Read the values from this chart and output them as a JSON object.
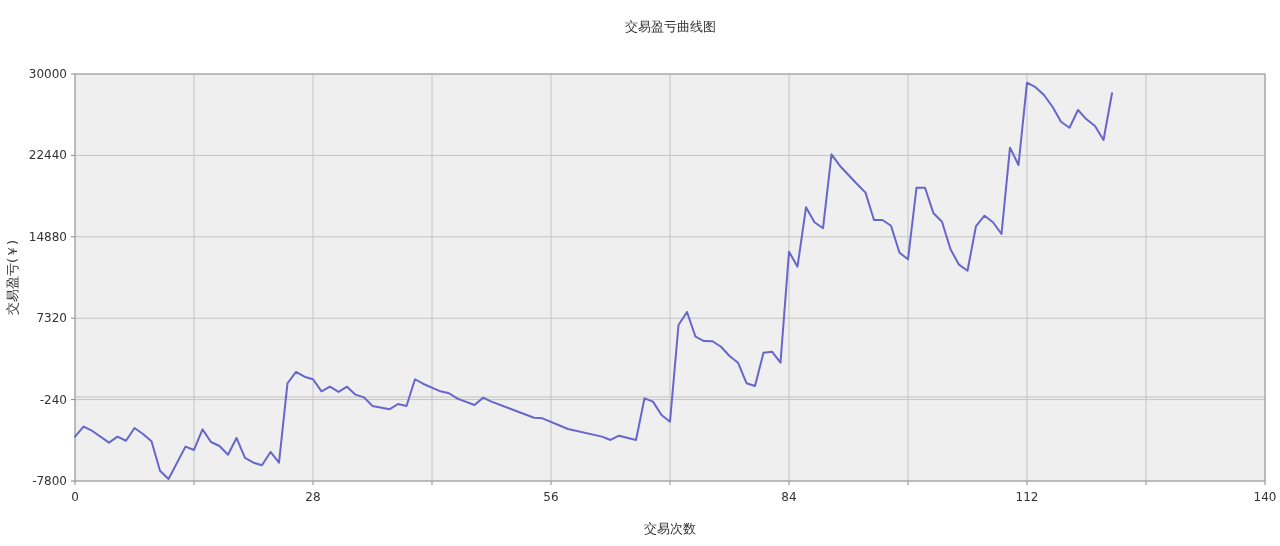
{
  "chart_data": {
    "type": "line",
    "title": "交易盈亏曲线图",
    "xlabel": "交易次数",
    "ylabel": "交易盈亏(￥)",
    "x": [
      0,
      1,
      2,
      4,
      5,
      6,
      7,
      8,
      9,
      10,
      11,
      13,
      14,
      15,
      16,
      17,
      18,
      19,
      20,
      21,
      22,
      23,
      24,
      25,
      26,
      27,
      28,
      29,
      30,
      31,
      32,
      33,
      34,
      35,
      37,
      38,
      39,
      40,
      41,
      43,
      44,
      45,
      47,
      48,
      49,
      54,
      55,
      58,
      62,
      63,
      64,
      66,
      67,
      68,
      69,
      70,
      71,
      72,
      73,
      74,
      75,
      76,
      77,
      78,
      79,
      80,
      81,
      82,
      83,
      84,
      85,
      86,
      87,
      88,
      89,
      90,
      91,
      92,
      93,
      94,
      95,
      96,
      97,
      98,
      99,
      100,
      101,
      102,
      103,
      104,
      105,
      106,
      107,
      108,
      109,
      110,
      111,
      112,
      113,
      114,
      115,
      116,
      117,
      118,
      119,
      120,
      121,
      122
    ],
    "series": [
      {
        "color": "#6666cc",
        "values": [
          -3680,
          -2750,
          -3130,
          -4240,
          -3680,
          -4060,
          -2880,
          -3430,
          -4110,
          -6840,
          -7610,
          -4610,
          -4920,
          -3000,
          -4180,
          -4550,
          -5360,
          -3800,
          -5660,
          -6100,
          -6340,
          -5100,
          -6100,
          1280,
          2330,
          1890,
          1650,
          530,
          960,
          470,
          960,
          220,
          -30,
          -830,
          -1140,
          -650,
          -830,
          1650,
          1210,
          530,
          350,
          -150,
          -740,
          -60,
          -430,
          -1920,
          -1980,
          -2970,
          -3680,
          -3990,
          -3590,
          -3990,
          -120,
          -430,
          -1670,
          -2290,
          6690,
          7900,
          5600,
          5200,
          5180,
          4670,
          3810,
          3190,
          1280,
          1020,
          4120,
          4210,
          3190,
          13500,
          12100,
          17620,
          16230,
          15670,
          22540,
          21460,
          20620,
          19780,
          18980,
          16440,
          16440,
          15910,
          13400,
          12790,
          19440,
          19440,
          17060,
          16280,
          13720,
          12290,
          11730,
          15880,
          16840,
          16230,
          15140,
          23160,
          21550,
          29190,
          28770,
          28050,
          26960,
          25570,
          25010,
          26660,
          25790,
          25170,
          23870,
          28210
        ]
      }
    ],
    "xlim": [
      0,
      140
    ],
    "xticks": [
      0,
      {
        "value": 14,
        "label": null
      },
      28,
      {
        "value": 42,
        "label": null
      },
      56,
      {
        "value": 70,
        "label": null
      },
      84,
      {
        "value": 98,
        "label": null
      },
      112,
      {
        "value": 126,
        "label": null
      },
      140
    ],
    "ylim": [
      -7800,
      30000
    ],
    "yticks": [
      -7800,
      -240,
      7320,
      14880,
      22440,
      30000
    ],
    "ref_lines": [
      {
        "axis": "y",
        "value": 0,
        "color": "#c0c0c0"
      }
    ],
    "grid": true,
    "line_style": "solid",
    "marker": "none"
  }
}
